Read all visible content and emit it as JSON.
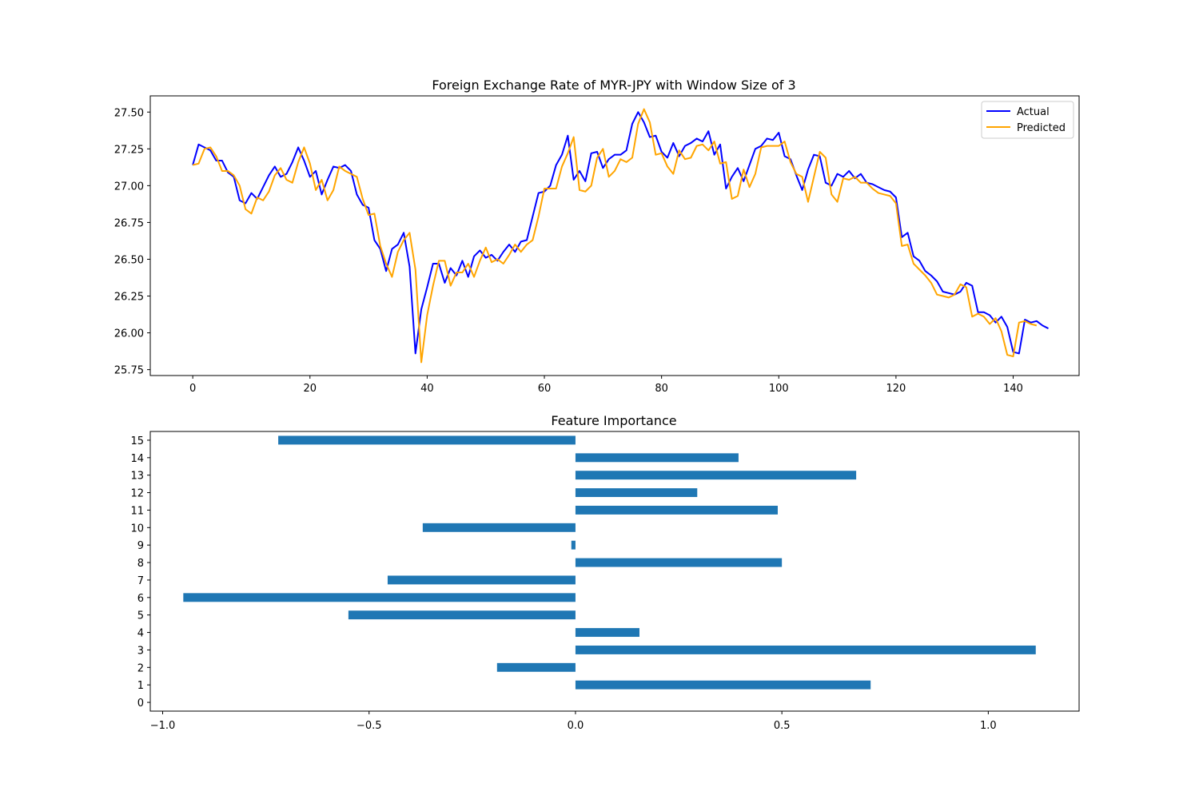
{
  "chart_data": [
    {
      "type": "line",
      "title": "Foreign Exchange Rate of MYR-JPY with Window Size of 3",
      "xlabel": "",
      "ylabel": "",
      "xlim": [
        -7.25,
        151.25
      ],
      "ylim": [
        25.71,
        27.61
      ],
      "xticks": [
        0,
        20,
        40,
        60,
        80,
        100,
        120,
        140
      ],
      "yticks": [
        25.75,
        26.0,
        26.25,
        26.5,
        26.75,
        27.0,
        27.25,
        27.5
      ],
      "ytick_labels": [
        "25.75",
        "26.00",
        "26.25",
        "26.50",
        "26.75",
        "27.00",
        "27.25",
        "27.50"
      ],
      "grid": false,
      "legend_position": "upper right",
      "series": [
        {
          "name": "Actual",
          "color": "#0000ff",
          "x_start": 0,
          "values": [
            27.14,
            27.28,
            27.26,
            27.24,
            27.17,
            27.17,
            27.09,
            27.06,
            26.9,
            26.88,
            26.95,
            26.91,
            26.99,
            27.07,
            27.13,
            27.06,
            27.08,
            27.16,
            27.26,
            27.17,
            27.06,
            27.1,
            26.94,
            27.04,
            27.13,
            27.12,
            27.14,
            27.1,
            26.94,
            26.87,
            26.85,
            26.63,
            26.57,
            26.42,
            26.57,
            26.6,
            26.68,
            26.45,
            25.86,
            26.16,
            26.31,
            26.47,
            26.47,
            26.34,
            26.44,
            26.39,
            26.49,
            26.38,
            26.52,
            26.56,
            26.51,
            26.53,
            26.49,
            26.55,
            26.6,
            26.55,
            26.62,
            26.63,
            26.79,
            26.95,
            26.96,
            27.0,
            27.14,
            27.21,
            27.34,
            27.04,
            27.1,
            27.03,
            27.22,
            27.23,
            27.12,
            27.18,
            27.21,
            27.21,
            27.24,
            27.42,
            27.5,
            27.43,
            27.33,
            27.34,
            27.23,
            27.19,
            27.29,
            27.2,
            27.27,
            27.29,
            27.32,
            27.3,
            27.37,
            27.21,
            27.28,
            26.98,
            27.06,
            27.12,
            27.03,
            27.14,
            27.25,
            27.27,
            27.32,
            27.31,
            27.36,
            27.2,
            27.18,
            27.07,
            26.97,
            27.11,
            27.21,
            27.2,
            27.02,
            27.0,
            27.08,
            27.06,
            27.1,
            27.05,
            27.08,
            27.02,
            27.01,
            26.99,
            26.97,
            26.96,
            26.92,
            26.65,
            26.68,
            26.52,
            26.49,
            26.42,
            26.39,
            26.35,
            26.28,
            26.27,
            26.26,
            26.28,
            26.34,
            26.32,
            26.14,
            26.14,
            26.12,
            26.07,
            26.11,
            26.04,
            25.87,
            25.86,
            26.09,
            26.07,
            26.08,
            26.05,
            26.03
          ]
        },
        {
          "name": "Predicted",
          "color": "#ffa500",
          "x_start": 0,
          "values": [
            27.14,
            27.15,
            27.25,
            27.26,
            27.2,
            27.1,
            27.1,
            27.07,
            27.0,
            26.84,
            26.81,
            26.92,
            26.9,
            26.96,
            27.07,
            27.12,
            27.04,
            27.02,
            27.16,
            27.26,
            27.15,
            26.97,
            27.04,
            26.9,
            26.97,
            27.13,
            27.1,
            27.08,
            27.06,
            26.91,
            26.8,
            26.81,
            26.59,
            26.47,
            26.38,
            26.55,
            26.63,
            26.68,
            26.43,
            25.8,
            26.12,
            26.32,
            26.49,
            26.49,
            26.32,
            26.41,
            26.41,
            26.47,
            26.38,
            26.49,
            26.58,
            26.48,
            26.5,
            26.47,
            26.53,
            26.6,
            26.55,
            26.6,
            26.63,
            26.79,
            26.98,
            26.98,
            26.98,
            27.13,
            27.22,
            27.33,
            26.97,
            26.96,
            27.0,
            27.19,
            27.25,
            27.06,
            27.1,
            27.18,
            27.16,
            27.19,
            27.42,
            27.52,
            27.43,
            27.21,
            27.22,
            27.13,
            27.08,
            27.24,
            27.18,
            27.19,
            27.27,
            27.28,
            27.24,
            27.3,
            27.15,
            27.16,
            26.91,
            26.93,
            27.11,
            26.99,
            27.08,
            27.26,
            27.27,
            27.27,
            27.27,
            27.3,
            27.16,
            27.08,
            27.06,
            26.89,
            27.06,
            27.23,
            27.19,
            26.94,
            26.89,
            27.05,
            27.04,
            27.06,
            27.02,
            27.02,
            26.98,
            26.95,
            26.94,
            26.93,
            26.88,
            26.59,
            26.6,
            26.47,
            26.43,
            26.39,
            26.34,
            26.26,
            26.25,
            26.24,
            26.26,
            26.33,
            26.31,
            26.11,
            26.13,
            26.11,
            26.06,
            26.1,
            26.01,
            25.85,
            25.84,
            26.07,
            26.08,
            26.06,
            26.05
          ]
        }
      ]
    },
    {
      "type": "bar",
      "orientation": "horizontal",
      "title": "Feature Importance",
      "xlabel": "",
      "ylabel": "",
      "xlim": [
        -1.03,
        1.22
      ],
      "xticks": [
        -1.0,
        -0.5,
        0.0,
        0.5,
        1.0
      ],
      "xtick_labels": [
        "−1.0",
        "−0.5",
        "0.0",
        "0.5",
        "1.0"
      ],
      "grid": false,
      "bar_color": "#1f77b4",
      "categories": [
        "0",
        "1",
        "2",
        "3",
        "4",
        "5",
        "6",
        "7",
        "8",
        "9",
        "10",
        "11",
        "12",
        "13",
        "14",
        "15"
      ],
      "values": [
        0.0,
        0.715,
        -0.19,
        1.115,
        0.155,
        -0.55,
        -0.95,
        -0.455,
        0.5,
        -0.01,
        -0.37,
        0.49,
        0.295,
        0.68,
        0.395,
        -0.72
      ]
    }
  ]
}
